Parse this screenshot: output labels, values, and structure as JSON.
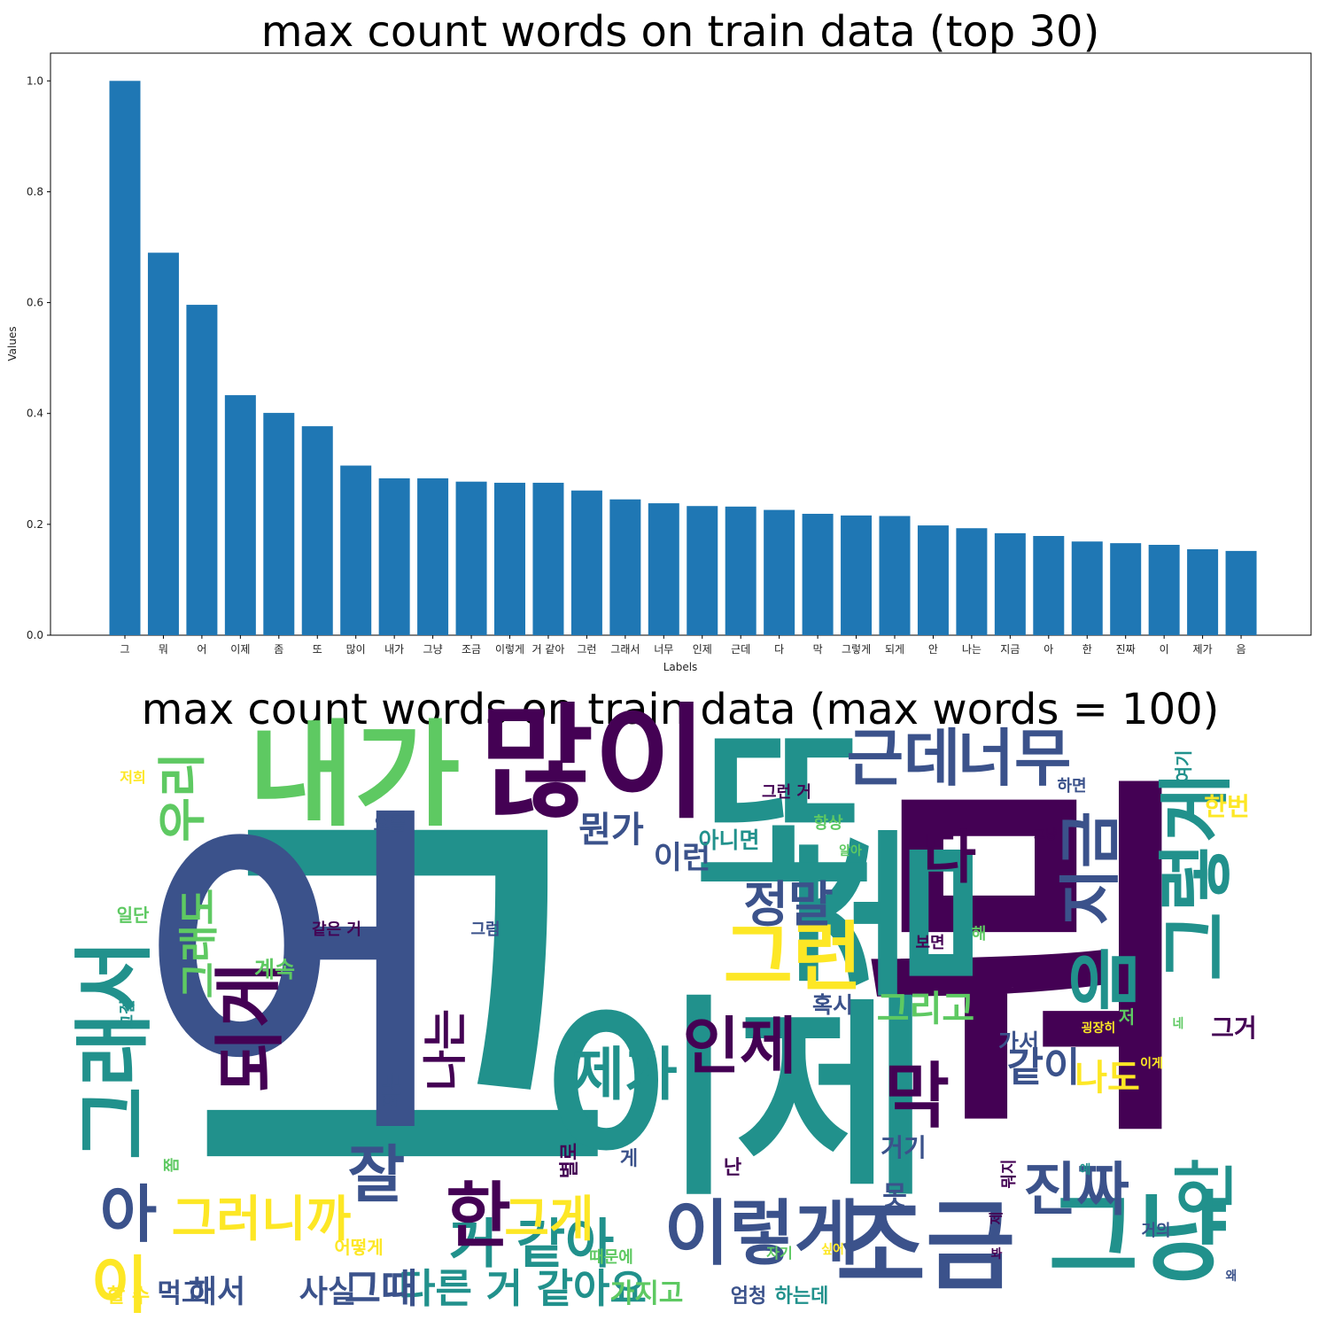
{
  "chart_data": [
    {
      "type": "bar",
      "title": "max count words on train data (top 30)",
      "xlabel": "Labels",
      "ylabel": "Values",
      "ylim": [
        0,
        1.05
      ],
      "yticks": [
        "0.0",
        "0.2",
        "0.4",
        "0.6",
        "0.8",
        "1.0"
      ],
      "color": "#1f77b4",
      "categories": [
        "그",
        "뭐",
        "어",
        "이제",
        "좀",
        "또",
        "많이",
        "내가",
        "그냥",
        "조금",
        "이렇게",
        "거 같아",
        "그런",
        "그래서",
        "너무",
        "인제",
        "근데",
        "다",
        "막",
        "그렇게",
        "되게",
        "안",
        "나는",
        "지금",
        "아",
        "한",
        "진짜",
        "이",
        "제가",
        "음"
      ],
      "values": [
        1.0,
        0.69,
        0.596,
        0.433,
        0.401,
        0.377,
        0.306,
        0.283,
        0.283,
        0.277,
        0.275,
        0.275,
        0.261,
        0.245,
        0.238,
        0.233,
        0.232,
        0.226,
        0.219,
        0.216,
        0.215,
        0.198,
        0.193,
        0.184,
        0.179,
        0.169,
        0.166,
        0.163,
        0.155,
        0.152
      ]
    },
    {
      "type": "wordcloud",
      "title": "max count words on train data (max words = 100)",
      "palette": [
        "#440154",
        "#3b528b",
        "#21918c",
        "#5ec962",
        "#fde725"
      ],
      "words": [
        "그",
        "뭐",
        "어",
        "이제",
        "좀",
        "또",
        "많이",
        "내가",
        "그냥",
        "조금",
        "이렇게",
        "거 같아",
        "그런",
        "그래서",
        "너무",
        "인제",
        "근데",
        "다",
        "막",
        "그렇게",
        "되게",
        "안",
        "나는",
        "지금",
        "아",
        "한",
        "진짜",
        "이",
        "제가",
        "음",
        "잘",
        "그게",
        "그러니까",
        "정말",
        "우리",
        "그래도",
        "그리고",
        "같이",
        "뭔가",
        "이런",
        "나도",
        "한번",
        "혹시",
        "못",
        "거기",
        "가서",
        "계속",
        "아니면",
        "요즘",
        "저",
        "그거",
        "사실",
        "해서",
        "먹고",
        "다른 거 같아요",
        "가지고",
        "그때",
        "할 수",
        "엄청",
        "하는데",
        "어떻게",
        "때문에",
        "거의",
        "되는",
        "같은 거",
        "그럼",
        "일단",
        "항상",
        "보면",
        "하면",
        "그런 거",
        "해",
        "그걸",
        "별로",
        "게",
        "난",
        "쫌",
        "뭐지",
        "여기",
        "저희",
        "자기",
        "제",
        "그냥",
        "굉장히",
        "내",
        "하고",
        "어쨌든",
        "싶어",
        "알아",
        "봐",
        "왜",
        "예",
        "네",
        "이게",
        "되고"
      ]
    }
  ]
}
